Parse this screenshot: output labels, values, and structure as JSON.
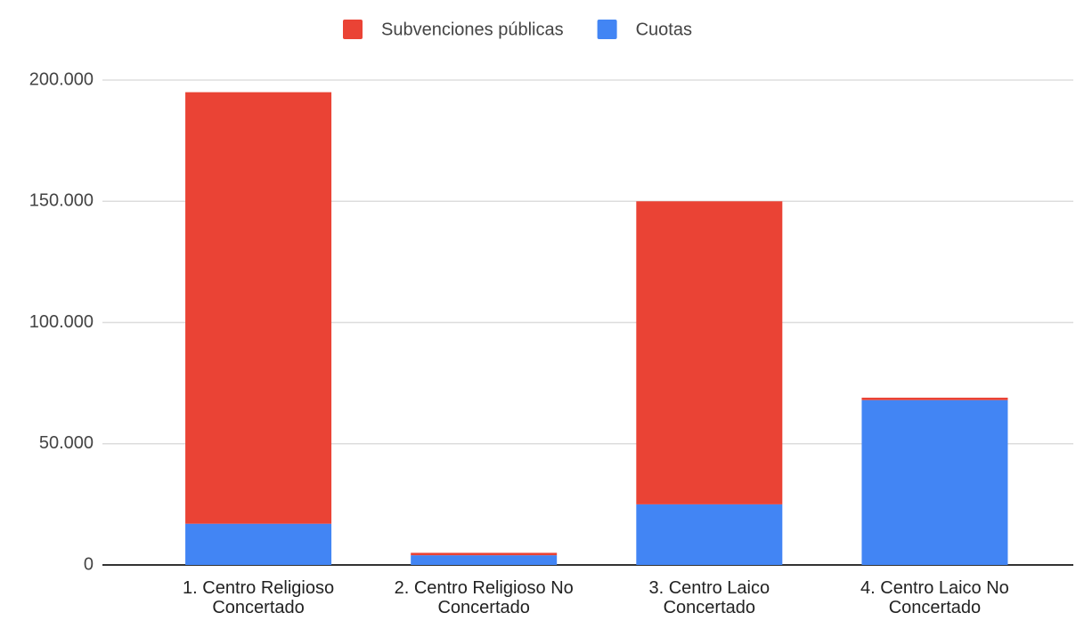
{
  "chart_data": {
    "type": "stacked_bar",
    "categories": [
      "1. Centro Religioso Concertado",
      "2. Centro Religioso No Concertado",
      "3. Centro Laico Concertado",
      "4. Centro Laico No Concertado"
    ],
    "series": [
      {
        "name": "Subvenciones públicas",
        "color": "#ea4335",
        "values": [
          178000,
          1000,
          125000,
          1000
        ]
      },
      {
        "name": "Cuotas",
        "color": "#4285f4",
        "values": [
          17000,
          4000,
          25000,
          68000
        ]
      }
    ],
    "ylim": [
      0,
      200000
    ],
    "yticks": [
      0,
      {
        "value": 50000,
        "label": "50.000"
      },
      {
        "value": 100000,
        "label": "100.000"
      },
      {
        "value": 150000,
        "label": "150.000"
      },
      {
        "value": 200000,
        "label": "200.000"
      }
    ],
    "grid": true,
    "legend": "top"
  }
}
